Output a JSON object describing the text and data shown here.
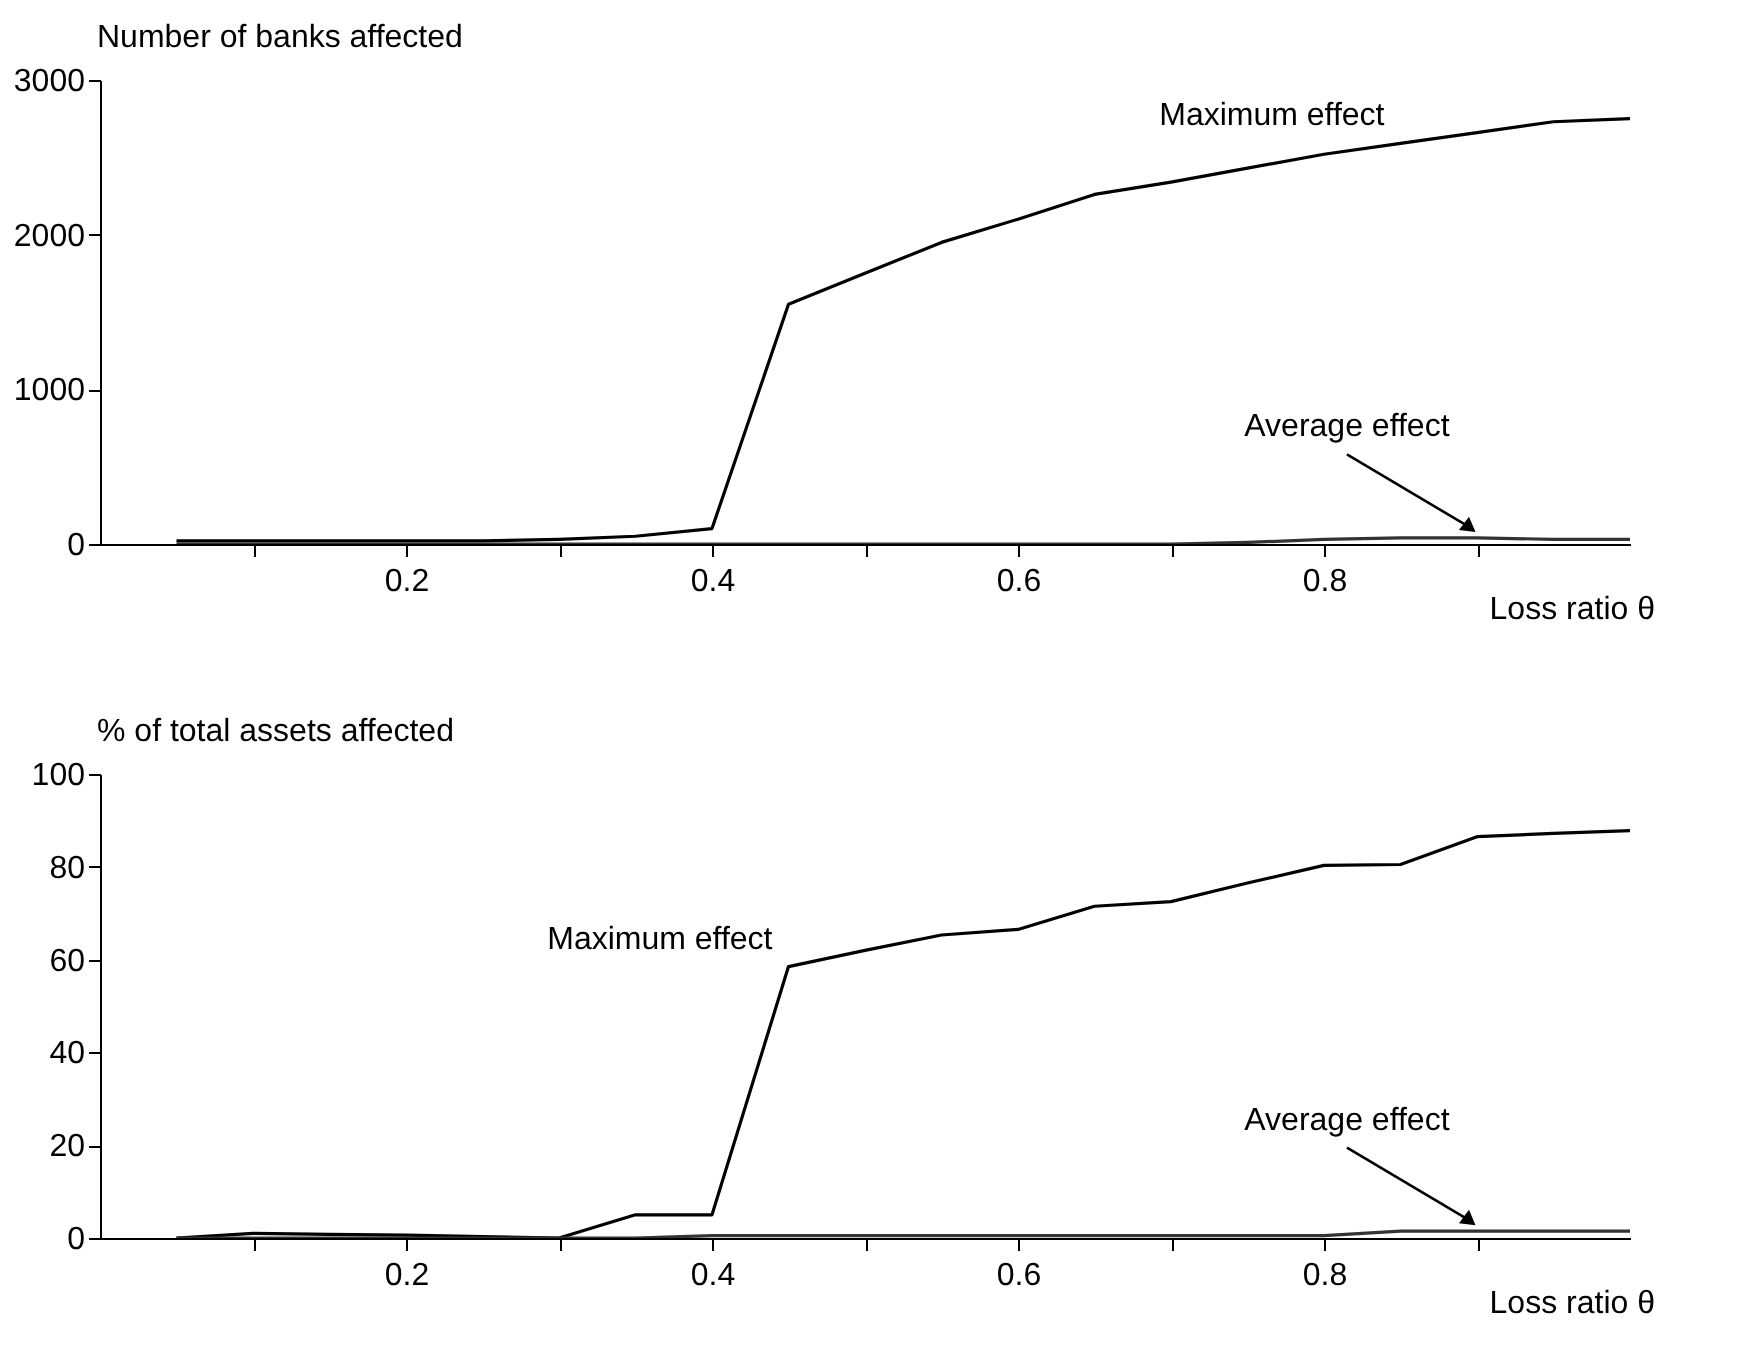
{
  "chart_data": [
    {
      "type": "line",
      "ylabel": "Number of banks affected",
      "xlabel": "Loss ratio θ",
      "xlim": [
        0,
        1
      ],
      "ylim": [
        0,
        3000
      ],
      "xticks": [
        {
          "value": 0.1,
          "label": null
        },
        0.2,
        {
          "value": 0.3,
          "label": null
        },
        0.4,
        {
          "value": 0.5,
          "label": null
        },
        0.6,
        {
          "value": 0.7,
          "label": null
        },
        0.8,
        {
          "value": 0.9,
          "label": null
        }
      ],
      "yticks": [
        0,
        1000,
        2000,
        3000
      ],
      "grid": false,
      "marker": "none",
      "line_style": "solid",
      "x": [
        0.05,
        0.1,
        0.15,
        0.2,
        0.25,
        0.3,
        0.35,
        0.4,
        0.45,
        0.5,
        0.55,
        0.6,
        0.65,
        0.7,
        0.75,
        0.8,
        0.85,
        0.9,
        0.95,
        1.0
      ],
      "series": [
        {
          "color": "#000000",
          "values": [
            20,
            20,
            20,
            20,
            20,
            30,
            50,
            100,
            1550,
            1750,
            1950,
            2100,
            2260,
            2340,
            2430,
            2520,
            2590,
            2660,
            2730,
            2750
          ]
        },
        {
          "color": "#333333",
          "values": [
            0,
            0,
            0,
            0,
            0,
            0,
            0,
            0,
            0,
            0,
            0,
            0,
            0,
            0,
            10,
            30,
            40,
            40,
            30,
            30
          ]
        }
      ],
      "annotations": [
        {
          "text": "Maximum effect",
          "x": 0.85,
          "y": 2590
        },
        {
          "text": "Average effect",
          "x": 0.9,
          "y": 40
        }
      ]
    },
    {
      "type": "line",
      "ylabel": "% of total assets affected",
      "xlabel": "Loss ratio θ",
      "xlim": [
        0,
        1
      ],
      "ylim": [
        0,
        100
      ],
      "xticks": [
        {
          "value": 0.1,
          "label": null
        },
        0.2,
        {
          "value": 0.3,
          "label": null
        },
        0.4,
        {
          "value": 0.5,
          "label": null
        },
        0.6,
        {
          "value": 0.7,
          "label": null
        },
        0.8,
        {
          "value": 0.9,
          "label": null
        }
      ],
      "yticks": [
        0,
        20,
        40,
        60,
        80,
        100
      ],
      "grid": false,
      "marker": "none",
      "line_style": "solid",
      "x": [
        0.05,
        0.1,
        0.15,
        0.2,
        0.25,
        0.3,
        0.35,
        0.4,
        0.45,
        0.5,
        0.55,
        0.6,
        0.65,
        0.7,
        0.75,
        0.8,
        0.85,
        0.9,
        0.95,
        1.0
      ],
      "series": [
        {
          "color": "#000000",
          "values": [
            0,
            1,
            0.8,
            0.6,
            0.3,
            0,
            5,
            5,
            58.5,
            62,
            65.3,
            66.5,
            71.5,
            72.5,
            76.5,
            80.3,
            80.5,
            86.5,
            87.2,
            87.8
          ]
        },
        {
          "color": "#333333",
          "values": [
            0,
            0,
            0,
            0,
            0,
            0,
            0,
            0.5,
            0.5,
            0.5,
            0.5,
            0.5,
            0.5,
            0.5,
            0.5,
            0.5,
            1.5,
            1.5,
            1.5,
            1.5
          ]
        }
      ],
      "annotations": [
        {
          "text": "Maximum effect",
          "x": 0.45,
          "y": 58.5
        },
        {
          "text": "Average effect",
          "x": 0.9,
          "y": 1.5
        }
      ]
    }
  ]
}
